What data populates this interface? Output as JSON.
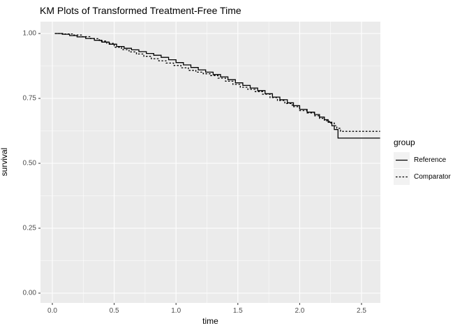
{
  "title": "KM Plots of Transformed Treatment-Free Time",
  "axes": {
    "x_title": "time",
    "y_title": "survival"
  },
  "legend": {
    "title": "group",
    "items": [
      {
        "label": "Reference",
        "linetype": "solid"
      },
      {
        "label": "Comparator",
        "linetype": "dashed"
      }
    ]
  },
  "colors": {
    "panel_background": "#ebebeb",
    "grid_major": "#ffffff",
    "grid_minor": "#ffffff",
    "axis_text": "#4d4d4d",
    "tick_mark": "#333333",
    "line_color": "#000000",
    "legend_key_fill": "#f2f2f2",
    "plot_background": "#ffffff"
  },
  "chart_data": {
    "type": "line",
    "subtype": "kaplan-meier-step",
    "title": "KM Plots of Transformed Treatment-Free Time",
    "xlabel": "time",
    "ylabel": "survival",
    "xlim": [
      -0.1,
      2.65
    ],
    "ylim": [
      -0.04,
      1.05
    ],
    "xticks": [
      0.0,
      0.5,
      1.0,
      1.5,
      2.0,
      2.5
    ],
    "xtick_labels": [
      "0.0",
      "0.5",
      "1.0",
      "1.5",
      "2.0",
      "2.5"
    ],
    "xticks_minor": [
      0.25,
      0.75,
      1.25,
      1.75,
      2.25
    ],
    "yticks": [
      0.0,
      0.25,
      0.5,
      0.75,
      1.0
    ],
    "ytick_labels": [
      "0.00",
      "0.25",
      "0.50",
      "0.75",
      "1.00"
    ],
    "yticks_minor": [
      0.125,
      0.375,
      0.625,
      0.875
    ],
    "grid": true,
    "legend_position": "right",
    "legend_title": "group",
    "series": [
      {
        "name": "Reference",
        "linetype": "solid",
        "color": "#000000",
        "step": true,
        "points": [
          [
            0.02,
            1.0
          ],
          [
            0.08,
            0.997
          ],
          [
            0.14,
            0.992
          ],
          [
            0.2,
            0.987
          ],
          [
            0.27,
            0.981
          ],
          [
            0.34,
            0.974
          ],
          [
            0.4,
            0.967
          ],
          [
            0.46,
            0.959
          ],
          [
            0.52,
            0.95
          ],
          [
            0.58,
            0.943
          ],
          [
            0.64,
            0.937
          ],
          [
            0.7,
            0.93
          ],
          [
            0.76,
            0.923
          ],
          [
            0.82,
            0.916
          ],
          [
            0.88,
            0.908
          ],
          [
            0.94,
            0.899
          ],
          [
            1.0,
            0.888
          ],
          [
            1.06,
            0.879
          ],
          [
            1.12,
            0.869
          ],
          [
            1.18,
            0.86
          ],
          [
            1.24,
            0.851
          ],
          [
            1.3,
            0.842
          ],
          [
            1.36,
            0.833
          ],
          [
            1.42,
            0.822
          ],
          [
            1.48,
            0.81
          ],
          [
            1.54,
            0.8
          ],
          [
            1.6,
            0.79
          ],
          [
            1.66,
            0.78
          ],
          [
            1.72,
            0.768
          ],
          [
            1.78,
            0.755
          ],
          [
            1.84,
            0.745
          ],
          [
            1.9,
            0.733
          ],
          [
            1.95,
            0.722
          ],
          [
            2.0,
            0.708
          ],
          [
            2.06,
            0.697
          ],
          [
            2.12,
            0.688
          ],
          [
            2.16,
            0.678
          ],
          [
            2.2,
            0.668
          ],
          [
            2.23,
            0.658
          ],
          [
            2.26,
            0.645
          ],
          [
            2.28,
            0.63
          ],
          [
            2.31,
            0.597
          ],
          [
            2.65,
            0.597
          ]
        ]
      },
      {
        "name": "Comparator",
        "linetype": "dashed",
        "color": "#000000",
        "step": true,
        "points": [
          [
            0.02,
            1.0
          ],
          [
            0.1,
            0.998
          ],
          [
            0.17,
            0.994
          ],
          [
            0.24,
            0.988
          ],
          [
            0.31,
            0.98
          ],
          [
            0.38,
            0.971
          ],
          [
            0.44,
            0.962
          ],
          [
            0.5,
            0.947
          ],
          [
            0.56,
            0.938
          ],
          [
            0.62,
            0.929
          ],
          [
            0.68,
            0.921
          ],
          [
            0.74,
            0.912
          ],
          [
            0.8,
            0.903
          ],
          [
            0.86,
            0.895
          ],
          [
            0.92,
            0.886
          ],
          [
            0.98,
            0.877
          ],
          [
            1.04,
            0.868
          ],
          [
            1.1,
            0.858
          ],
          [
            1.16,
            0.851
          ],
          [
            1.22,
            0.845
          ],
          [
            1.28,
            0.838
          ],
          [
            1.34,
            0.828
          ],
          [
            1.4,
            0.816
          ],
          [
            1.46,
            0.804
          ],
          [
            1.52,
            0.793
          ],
          [
            1.58,
            0.785
          ],
          [
            1.64,
            0.776
          ],
          [
            1.7,
            0.766
          ],
          [
            1.76,
            0.753
          ],
          [
            1.82,
            0.742
          ],
          [
            1.88,
            0.73
          ],
          [
            1.94,
            0.718
          ],
          [
            2.0,
            0.703
          ],
          [
            2.06,
            0.694
          ],
          [
            2.12,
            0.683
          ],
          [
            2.16,
            0.673
          ],
          [
            2.2,
            0.664
          ],
          [
            2.24,
            0.655
          ],
          [
            2.28,
            0.645
          ],
          [
            2.3,
            0.635
          ],
          [
            2.33,
            0.623
          ],
          [
            2.65,
            0.623
          ]
        ]
      }
    ]
  }
}
